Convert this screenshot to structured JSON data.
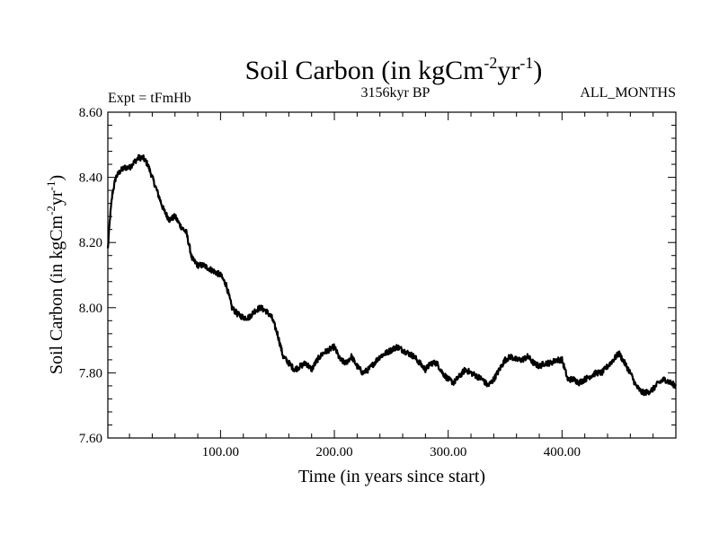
{
  "chart_data": {
    "type": "line",
    "title": {
      "base": "Soil Carbon (in kgCm",
      "exp1": "-2",
      "mid": "yr",
      "exp2": "-1",
      "end": ")"
    },
    "subtitle_left": "Expt = tFmHb",
    "subtitle_center": "3156kyr BP",
    "subtitle_right": "ALL_MONTHS",
    "xlabel": "Time (in years since start)",
    "ylabel": {
      "base": "Soil Carbon (in kgCm",
      "exp1": "-2",
      "mid": "yr",
      "exp2": "-1",
      "end": ")"
    },
    "xlim": [
      1,
      500
    ],
    "ylim": [
      7.6,
      8.6
    ],
    "x_ticks": [
      100,
      200,
      300,
      400
    ],
    "x_tick_labels": [
      "100.00",
      "200.00",
      "300.00",
      "400.00"
    ],
    "y_ticks": [
      7.6,
      7.8,
      8.0,
      8.2,
      8.4,
      8.6
    ],
    "y_tick_labels": [
      "7.60",
      "7.80",
      "8.00",
      "8.20",
      "8.40",
      "8.60"
    ],
    "grid": false,
    "series": [
      {
        "name": "Soil Carbon",
        "color": "#000000",
        "x": [
          1,
          3,
          5,
          8,
          12,
          16,
          20,
          25,
          28,
          32,
          36,
          40,
          45,
          50,
          55,
          60,
          65,
          70,
          75,
          80,
          85,
          90,
          95,
          100,
          105,
          110,
          115,
          120,
          125,
          130,
          135,
          140,
          145,
          150,
          155,
          160,
          165,
          170,
          175,
          180,
          185,
          190,
          195,
          200,
          205,
          210,
          215,
          220,
          225,
          230,
          235,
          240,
          245,
          250,
          255,
          260,
          265,
          270,
          275,
          280,
          285,
          290,
          295,
          300,
          305,
          310,
          315,
          320,
          325,
          330,
          335,
          340,
          345,
          350,
          355,
          360,
          365,
          370,
          375,
          380,
          385,
          390,
          395,
          400,
          405,
          410,
          415,
          420,
          425,
          430,
          435,
          440,
          445,
          450,
          455,
          460,
          465,
          470,
          475,
          480,
          485,
          490,
          495,
          500
        ],
        "values": [
          8.18,
          8.28,
          8.35,
          8.4,
          8.42,
          8.43,
          8.43,
          8.45,
          8.46,
          8.46,
          8.44,
          8.4,
          8.35,
          8.3,
          8.27,
          8.28,
          8.25,
          8.23,
          8.15,
          8.13,
          8.13,
          8.12,
          8.11,
          8.1,
          8.07,
          8.0,
          7.98,
          7.97,
          7.97,
          7.99,
          8.0,
          7.99,
          7.97,
          7.92,
          7.85,
          7.83,
          7.81,
          7.82,
          7.83,
          7.81,
          7.84,
          7.86,
          7.87,
          7.88,
          7.84,
          7.83,
          7.85,
          7.82,
          7.8,
          7.81,
          7.83,
          7.85,
          7.86,
          7.87,
          7.88,
          7.87,
          7.86,
          7.85,
          7.83,
          7.81,
          7.83,
          7.83,
          7.8,
          7.78,
          7.77,
          7.79,
          7.81,
          7.8,
          7.79,
          7.78,
          7.76,
          7.78,
          7.81,
          7.84,
          7.85,
          7.84,
          7.84,
          7.85,
          7.83,
          7.82,
          7.83,
          7.83,
          7.84,
          7.84,
          7.78,
          7.78,
          7.77,
          7.78,
          7.79,
          7.8,
          7.8,
          7.82,
          7.84,
          7.86,
          7.83,
          7.8,
          7.76,
          7.74,
          7.74,
          7.75,
          7.77,
          7.78,
          7.77,
          7.76
        ]
      }
    ]
  }
}
